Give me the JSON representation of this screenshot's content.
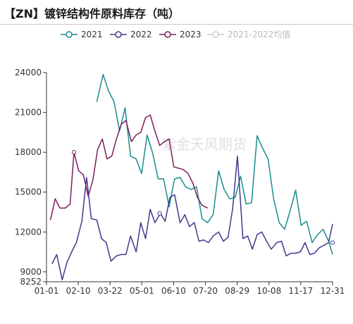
{
  "title": "【ZN】镀锌结构件原料库存（吨）",
  "watermark": "紫金天风期货",
  "chart_data": {
    "type": "line",
    "title": "【ZN】镀锌结构件原料库存（吨）",
    "xlabel": "",
    "ylabel": "",
    "x_ticks": [
      "01-01",
      "02-10",
      "03-22",
      "05-01",
      "06-10",
      "07-20",
      "08-29",
      "10-08",
      "11-17",
      "12-31"
    ],
    "y_ticks": [
      8252,
      9000,
      12000,
      15000,
      18000,
      21000,
      24000
    ],
    "ylim": [
      8252,
      24000
    ],
    "xlim": [
      0,
      364
    ],
    "grid": false,
    "legend_position": "top",
    "series": [
      {
        "name": "2021",
        "color": "#1a8c8c",
        "x": [
          64,
          72,
          79,
          86,
          93,
          100,
          107,
          114,
          121,
          128,
          135,
          142,
          149,
          156,
          163,
          170,
          177,
          184,
          191,
          198,
          205,
          212,
          219,
          226,
          233,
          240,
          247,
          254,
          261,
          268,
          275,
          282,
          289,
          296,
          303,
          310,
          317,
          324,
          331,
          338,
          345,
          352,
          359,
          364
        ],
        "y": [
          21800,
          23850,
          22600,
          21800,
          19600,
          21350,
          17700,
          17500,
          16400,
          19300,
          17950,
          16000,
          16000,
          13900,
          16000,
          16100,
          15400,
          15200,
          15400,
          13000,
          12700,
          13300,
          16600,
          15200,
          14500,
          14600,
          16200,
          14100,
          14200,
          19250,
          18300,
          17500,
          14500,
          12700,
          12200,
          13600,
          15150,
          12500,
          12800,
          11200,
          11800,
          12200,
          11300,
          10300
        ],
        "markers": []
      },
      {
        "name": "2022",
        "color": "#3e3a8e",
        "x": [
          7,
          13,
          20,
          26,
          32,
          38,
          45,
          51,
          57,
          64,
          70,
          76,
          82,
          89,
          95,
          101,
          107,
          114,
          120,
          126,
          132,
          138,
          145,
          151,
          157,
          163,
          170,
          176,
          182,
          188,
          194,
          200,
          206,
          212,
          219,
          225,
          231,
          237,
          243,
          250,
          256,
          262,
          268,
          274,
          280,
          286,
          293,
          299,
          305,
          311,
          317,
          323,
          329,
          335,
          341,
          347,
          353,
          359,
          364
        ],
        "y": [
          9600,
          10300,
          8400,
          9700,
          10500,
          11200,
          12800,
          16100,
          13000,
          12900,
          11500,
          11200,
          9800,
          10200,
          10300,
          10300,
          11700,
          10500,
          12700,
          11500,
          13700,
          12700,
          13400,
          12800,
          14600,
          14800,
          12700,
          13300,
          12400,
          12700,
          11300,
          11400,
          11200,
          11700,
          12000,
          11300,
          11600,
          13800,
          17700,
          11500,
          11700,
          10700,
          11800,
          12000,
          11300,
          10700,
          11200,
          11300,
          10200,
          10400,
          10400,
          10500,
          11200,
          10300,
          10400,
          10800,
          11000,
          11200,
          12600
        ],
        "markers": [
          {
            "x": 144,
            "y": 13400
          },
          {
            "x": 364,
            "y": 11200
          }
        ]
      },
      {
        "name": "2023",
        "color": "#7a1e5e",
        "x": [
          5,
          11,
          17,
          24,
          30,
          35,
          41,
          47,
          53,
          59,
          65,
          71,
          77,
          83,
          89,
          95,
          101,
          108,
          114,
          120,
          126,
          132,
          138,
          144,
          150,
          156,
          162,
          168,
          174,
          180,
          186,
          192,
          198,
          205
        ],
        "y": [
          12900,
          14500,
          13800,
          13800,
          14100,
          18000,
          16600,
          16300,
          14700,
          15900,
          18200,
          19000,
          17500,
          17700,
          19000,
          20100,
          20400,
          18800,
          19300,
          19500,
          20600,
          20800,
          19600,
          18500,
          18800,
          19000,
          16900,
          16800,
          16700,
          16400,
          15700,
          14600,
          14000,
          13800
        ],
        "markers": [
          {
            "x": 35,
            "y": 18000
          }
        ]
      },
      {
        "name": "2021-2022均值",
        "color": "#cccccc",
        "x": [],
        "y": [],
        "markers": []
      }
    ]
  }
}
